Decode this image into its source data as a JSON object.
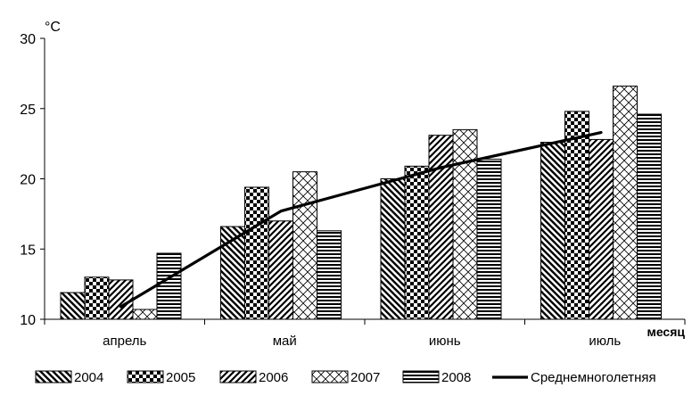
{
  "chart_data": {
    "type": "bar",
    "unit_label": "°C",
    "xlabel": "месяц",
    "categories": [
      "апрель",
      "май",
      "июнь",
      "июль"
    ],
    "ylim": [
      10,
      30
    ],
    "yticks": [
      10,
      15,
      20,
      25,
      30
    ],
    "grid": false,
    "legend_position": "bottom",
    "series": [
      {
        "name": "2004",
        "pattern": "diag-back",
        "values": [
          11.9,
          16.6,
          20.0,
          22.6
        ]
      },
      {
        "name": "2005",
        "pattern": "checker",
        "values": [
          13.0,
          19.4,
          20.9,
          24.8
        ]
      },
      {
        "name": "2006",
        "pattern": "diag-fwd",
        "values": [
          12.8,
          17.0,
          23.1,
          22.8
        ]
      },
      {
        "name": "2007",
        "pattern": "crosshatch",
        "values": [
          10.7,
          20.5,
          23.5,
          26.6
        ]
      },
      {
        "name": "2008",
        "pattern": "horizontal",
        "values": [
          14.7,
          16.3,
          21.4,
          24.6
        ]
      }
    ],
    "line_series": {
      "name": "Среднемноголетняя",
      "values": [
        10.9,
        17.7,
        20.8,
        23.3
      ]
    },
    "colors": {
      "ink": "#000000",
      "background": "#ffffff"
    }
  }
}
